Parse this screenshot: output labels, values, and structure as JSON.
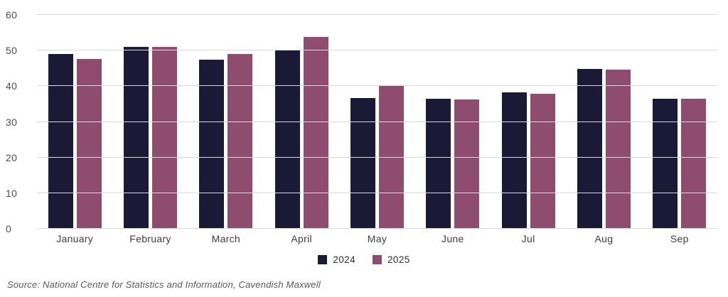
{
  "chart_data": {
    "type": "bar",
    "title": "",
    "xlabel": "",
    "ylabel": "",
    "categories": [
      "January",
      "February",
      "March",
      "April",
      "May",
      "June",
      "Jul",
      "Aug",
      "Sep"
    ],
    "series": [
      {
        "name": "2024",
        "color": "#1a1a36",
        "values": [
          49.0,
          51.1,
          47.5,
          50.1,
          36.7,
          36.4,
          38.3,
          44.9,
          36.5
        ]
      },
      {
        "name": "2025",
        "color": "#8e4d6e",
        "values": [
          47.6,
          51.0,
          49.0,
          53.8,
          40.0,
          36.3,
          37.8,
          44.7,
          36.4
        ]
      }
    ],
    "ylim": [
      0,
      60
    ],
    "yticks": [
      0,
      10,
      20,
      30,
      40,
      50,
      60
    ],
    "grid": "horizontal",
    "gridline_color": "#d9d9dd",
    "legend_position": "bottom"
  },
  "legend": {
    "items": [
      {
        "label": "2024",
        "color": "#1a1a36"
      },
      {
        "label": "2025",
        "color": "#8e4d6e"
      }
    ]
  },
  "source_note": "Source: National Centre for Statistics and Information, Cavendish Maxwell"
}
